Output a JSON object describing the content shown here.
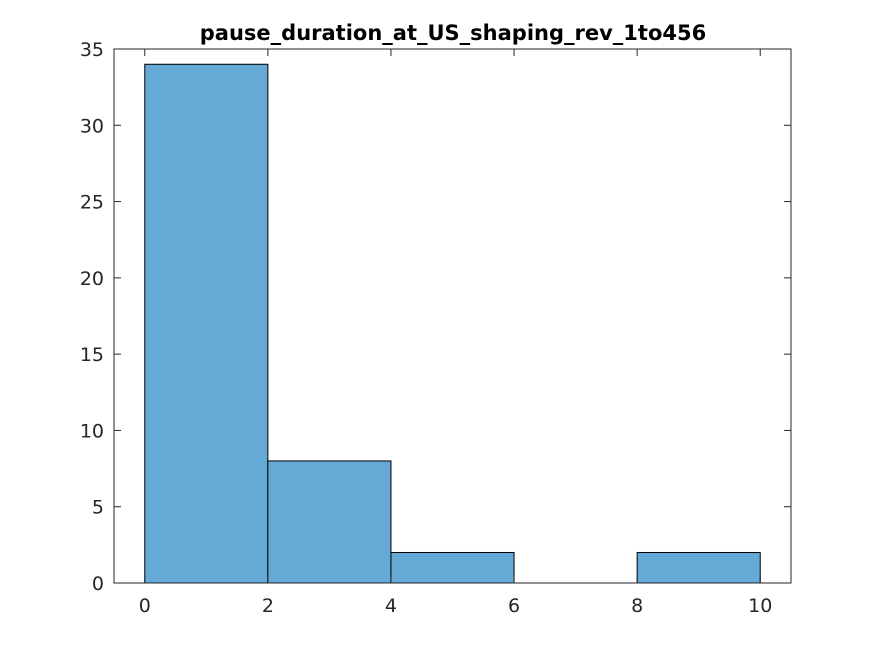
{
  "chart_data": {
    "type": "bar",
    "title": "pause_duration_at_US_shaping_rev_1to456",
    "xlabel": "",
    "ylabel": "",
    "bins": [
      {
        "x0": 0,
        "x1": 2,
        "count": 34
      },
      {
        "x0": 2,
        "x1": 4,
        "count": 8
      },
      {
        "x0": 4,
        "x1": 6,
        "count": 2
      },
      {
        "x0": 6,
        "x1": 8,
        "count": 0
      },
      {
        "x0": 8,
        "x1": 10,
        "count": 2
      }
    ],
    "xlim": [
      -0.5,
      10.5
    ],
    "ylim": [
      0,
      35
    ],
    "xticks": [
      0,
      2,
      4,
      6,
      8,
      10
    ],
    "yticks": [
      0,
      5,
      10,
      15,
      20,
      25,
      30,
      35
    ],
    "xtick_labels": [
      "0",
      "2",
      "4",
      "6",
      "8",
      "10"
    ],
    "ytick_labels": [
      "0",
      "5",
      "10",
      "15",
      "20",
      "25",
      "30",
      "35"
    ],
    "grid": false,
    "legend": "none",
    "colors": {
      "bar_fill": "#65a9d7",
      "bar_edge": "#000000",
      "axis": "#262626",
      "background": "#ffffff"
    }
  }
}
